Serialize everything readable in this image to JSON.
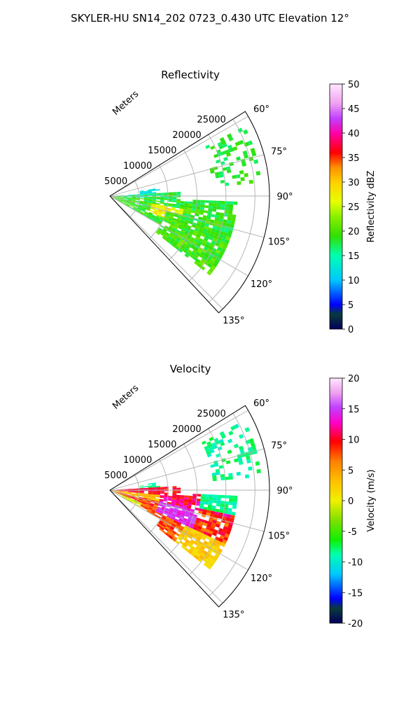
{
  "figure": {
    "title": "SKYLER-HU  SN14_202  0723_0.430 UTC Elevation 12°"
  },
  "chart_data": [
    {
      "type": "heatmap",
      "projection": "polar-sector",
      "title": "Reflectivity",
      "range_label": "Meters",
      "range_ticks": [
        5000,
        10000,
        15000,
        20000,
        25000
      ],
      "range_max": 27500,
      "azimuth_ticks": [
        "60°",
        "75°",
        "90°",
        "105°",
        "120°",
        "135°"
      ],
      "azimuth_range": [
        58,
        137
      ],
      "grid": true,
      "colorbar": {
        "label": "Reflectivity dBZ",
        "range": [
          0,
          50
        ],
        "ticks": [
          0,
          5,
          10,
          15,
          20,
          25,
          30,
          35,
          40,
          45,
          50
        ]
      },
      "dominant_values": "10-25 dBZ with core near 30-35 dBZ around 104-110° at 9000-13000 m"
    },
    {
      "type": "heatmap",
      "projection": "polar-sector",
      "title": "Velocity",
      "range_label": "Meters",
      "range_ticks": [
        5000,
        10000,
        15000,
        20000,
        25000
      ],
      "range_max": 27500,
      "azimuth_ticks": [
        "60°",
        "75°",
        "90°",
        "105°",
        "120°",
        "135°"
      ],
      "azimuth_range": [
        58,
        137
      ],
      "grid": true,
      "colorbar": {
        "label": "Velocity (m/s)",
        "range": [
          -20,
          20
        ],
        "ticks": [
          -20,
          -15,
          -10,
          -5,
          0,
          5,
          10,
          15,
          20
        ]
      },
      "dominant_values": "mostly +5 to +15 m/s with -10 m/s zones near 90-100° and 60-80° at 18000-24000 m"
    }
  ]
}
